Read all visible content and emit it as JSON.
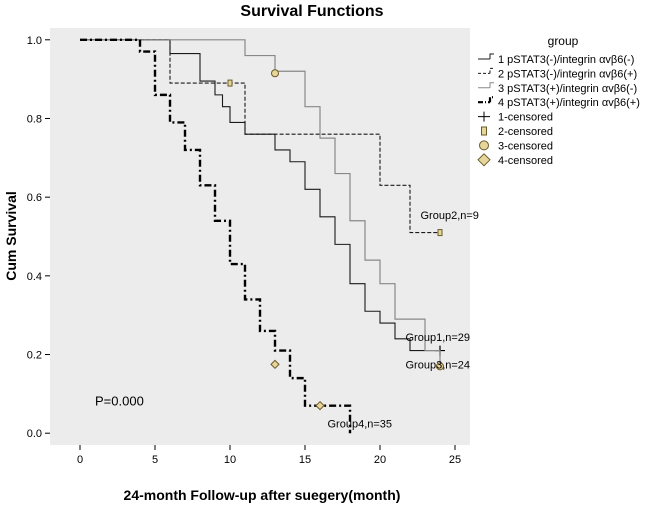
{
  "chart_data": {
    "type": "line",
    "subtype": "kaplan-meier-step",
    "title": "Survival Functions",
    "xlabel": "24-month Follow-up after suegery(month)",
    "ylabel": "Cum Survival",
    "xlim": [
      -2,
      26
    ],
    "ylim": [
      -0.03,
      1.03
    ],
    "xticks": [
      0,
      5,
      10,
      15,
      20,
      25
    ],
    "xtick_labels": [
      "0",
      "5",
      "10",
      "15",
      "20",
      "25"
    ],
    "yticks": [
      0.0,
      0.2,
      0.4,
      0.6,
      0.8,
      1.0
    ],
    "ytick_labels": [
      "0.0",
      "0.2",
      "0.4",
      "0.6",
      "0.8",
      "1.0"
    ],
    "colors": {
      "plot_background": "#ececec",
      "group1": "#1a1a1a",
      "group2": "#1a1a1a",
      "group3": "#888888",
      "group4": "#000000",
      "censor_fill": "#e6d69a",
      "censor_stroke": "#6b5a2a"
    },
    "legend": {
      "title": "group",
      "position": "right",
      "entries": [
        {
          "label": "1 pSTAT3(-)/integrin αvβ6(-)",
          "key": "group1",
          "icon": "line-solid-dark"
        },
        {
          "label": "2 pSTAT3(-)/integrin αvβ6(+)",
          "key": "group2",
          "icon": "line-dashed"
        },
        {
          "label": "3 pSTAT3(+)/integrin αvβ6(-)",
          "key": "group3",
          "icon": "line-solid-gray"
        },
        {
          "label": "4 pSTAT3(+)/integrin αvβ6(+)",
          "key": "group4",
          "icon": "line-dashdot-thick"
        },
        {
          "label": "1-censored",
          "key": "censor1",
          "icon": "plus-icon"
        },
        {
          "label": "2-censored",
          "key": "censor2",
          "icon": "square-icon"
        },
        {
          "label": "3-censored",
          "key": "censor3",
          "icon": "circle-icon"
        },
        {
          "label": "4-censored",
          "key": "censor4",
          "icon": "diamond-icon"
        }
      ]
    },
    "series": [
      {
        "name": "Group1",
        "label": "Group1,n=29",
        "n": 29,
        "style": "solid-dark",
        "steps": [
          [
            0,
            1.0
          ],
          [
            6,
            0.965
          ],
          [
            8,
            0.895
          ],
          [
            9,
            0.86
          ],
          [
            9.5,
            0.83
          ],
          [
            10,
            0.79
          ],
          [
            11,
            0.76
          ],
          [
            13,
            0.72
          ],
          [
            14,
            0.69
          ],
          [
            15,
            0.62
          ],
          [
            16,
            0.55
          ],
          [
            17,
            0.48
          ],
          [
            18,
            0.38
          ],
          [
            19,
            0.31
          ],
          [
            20,
            0.28
          ],
          [
            21,
            0.24
          ],
          [
            22,
            0.21
          ],
          [
            24,
            0.21
          ]
        ],
        "censored": [
          [
            24,
            0.21
          ]
        ],
        "censor_marker": "plus",
        "annotation": {
          "text": "Group1,n=29",
          "x": 21.7,
          "y": 0.235
        }
      },
      {
        "name": "Group2",
        "label": "Group2,n=9",
        "n": 9,
        "style": "dashed",
        "steps": [
          [
            0,
            1.0
          ],
          [
            6,
            0.89
          ],
          [
            10,
            0.89
          ],
          [
            11,
            0.76
          ],
          [
            20,
            0.76
          ],
          [
            20,
            0.63
          ],
          [
            22,
            0.63
          ],
          [
            22,
            0.51
          ],
          [
            24,
            0.51
          ]
        ],
        "censored": [
          [
            10,
            0.89
          ],
          [
            24,
            0.51
          ]
        ],
        "censor_marker": "square",
        "annotation": {
          "text": "Group2,n=9",
          "x": 22.7,
          "y": 0.545
        }
      },
      {
        "name": "Group3",
        "label": "Group3,n=24",
        "n": 24,
        "style": "solid-gray",
        "steps": [
          [
            0,
            1.0
          ],
          [
            11,
            1.0
          ],
          [
            11,
            0.96
          ],
          [
            13,
            0.92
          ],
          [
            15,
            0.83
          ],
          [
            16,
            0.75
          ],
          [
            17,
            0.66
          ],
          [
            18,
            0.54
          ],
          [
            19,
            0.44
          ],
          [
            20,
            0.38
          ],
          [
            21,
            0.29
          ],
          [
            23,
            0.21
          ],
          [
            24,
            0.17
          ]
        ],
        "censored": [
          [
            13,
            0.915
          ],
          [
            24,
            0.17
          ]
        ],
        "censor_marker": "circle",
        "annotation": {
          "text": "Group3,n=24",
          "x": 21.7,
          "y": 0.165
        }
      },
      {
        "name": "Group4",
        "label": "Group4,n=35",
        "n": 35,
        "style": "dashdot-thick",
        "steps": [
          [
            0,
            1.0
          ],
          [
            4,
            1.0
          ],
          [
            4,
            0.97
          ],
          [
            5,
            0.86
          ],
          [
            6,
            0.79
          ],
          [
            7,
            0.72
          ],
          [
            8,
            0.63
          ],
          [
            9,
            0.54
          ],
          [
            10,
            0.43
          ],
          [
            11,
            0.34
          ],
          [
            12,
            0.26
          ],
          [
            13,
            0.21
          ],
          [
            14,
            0.14
          ],
          [
            15,
            0.07
          ],
          [
            18,
            0.07
          ],
          [
            18,
            0.0
          ]
        ],
        "censored": [
          [
            13,
            0.175
          ],
          [
            16,
            0.07
          ]
        ],
        "censor_marker": "diamond",
        "annotation": {
          "text": "Group4,n=35",
          "x": 16.5,
          "y": 0.015
        }
      }
    ],
    "annotations": [
      {
        "text": "P=0.000",
        "x": 1.0,
        "y": 0.07
      }
    ]
  }
}
